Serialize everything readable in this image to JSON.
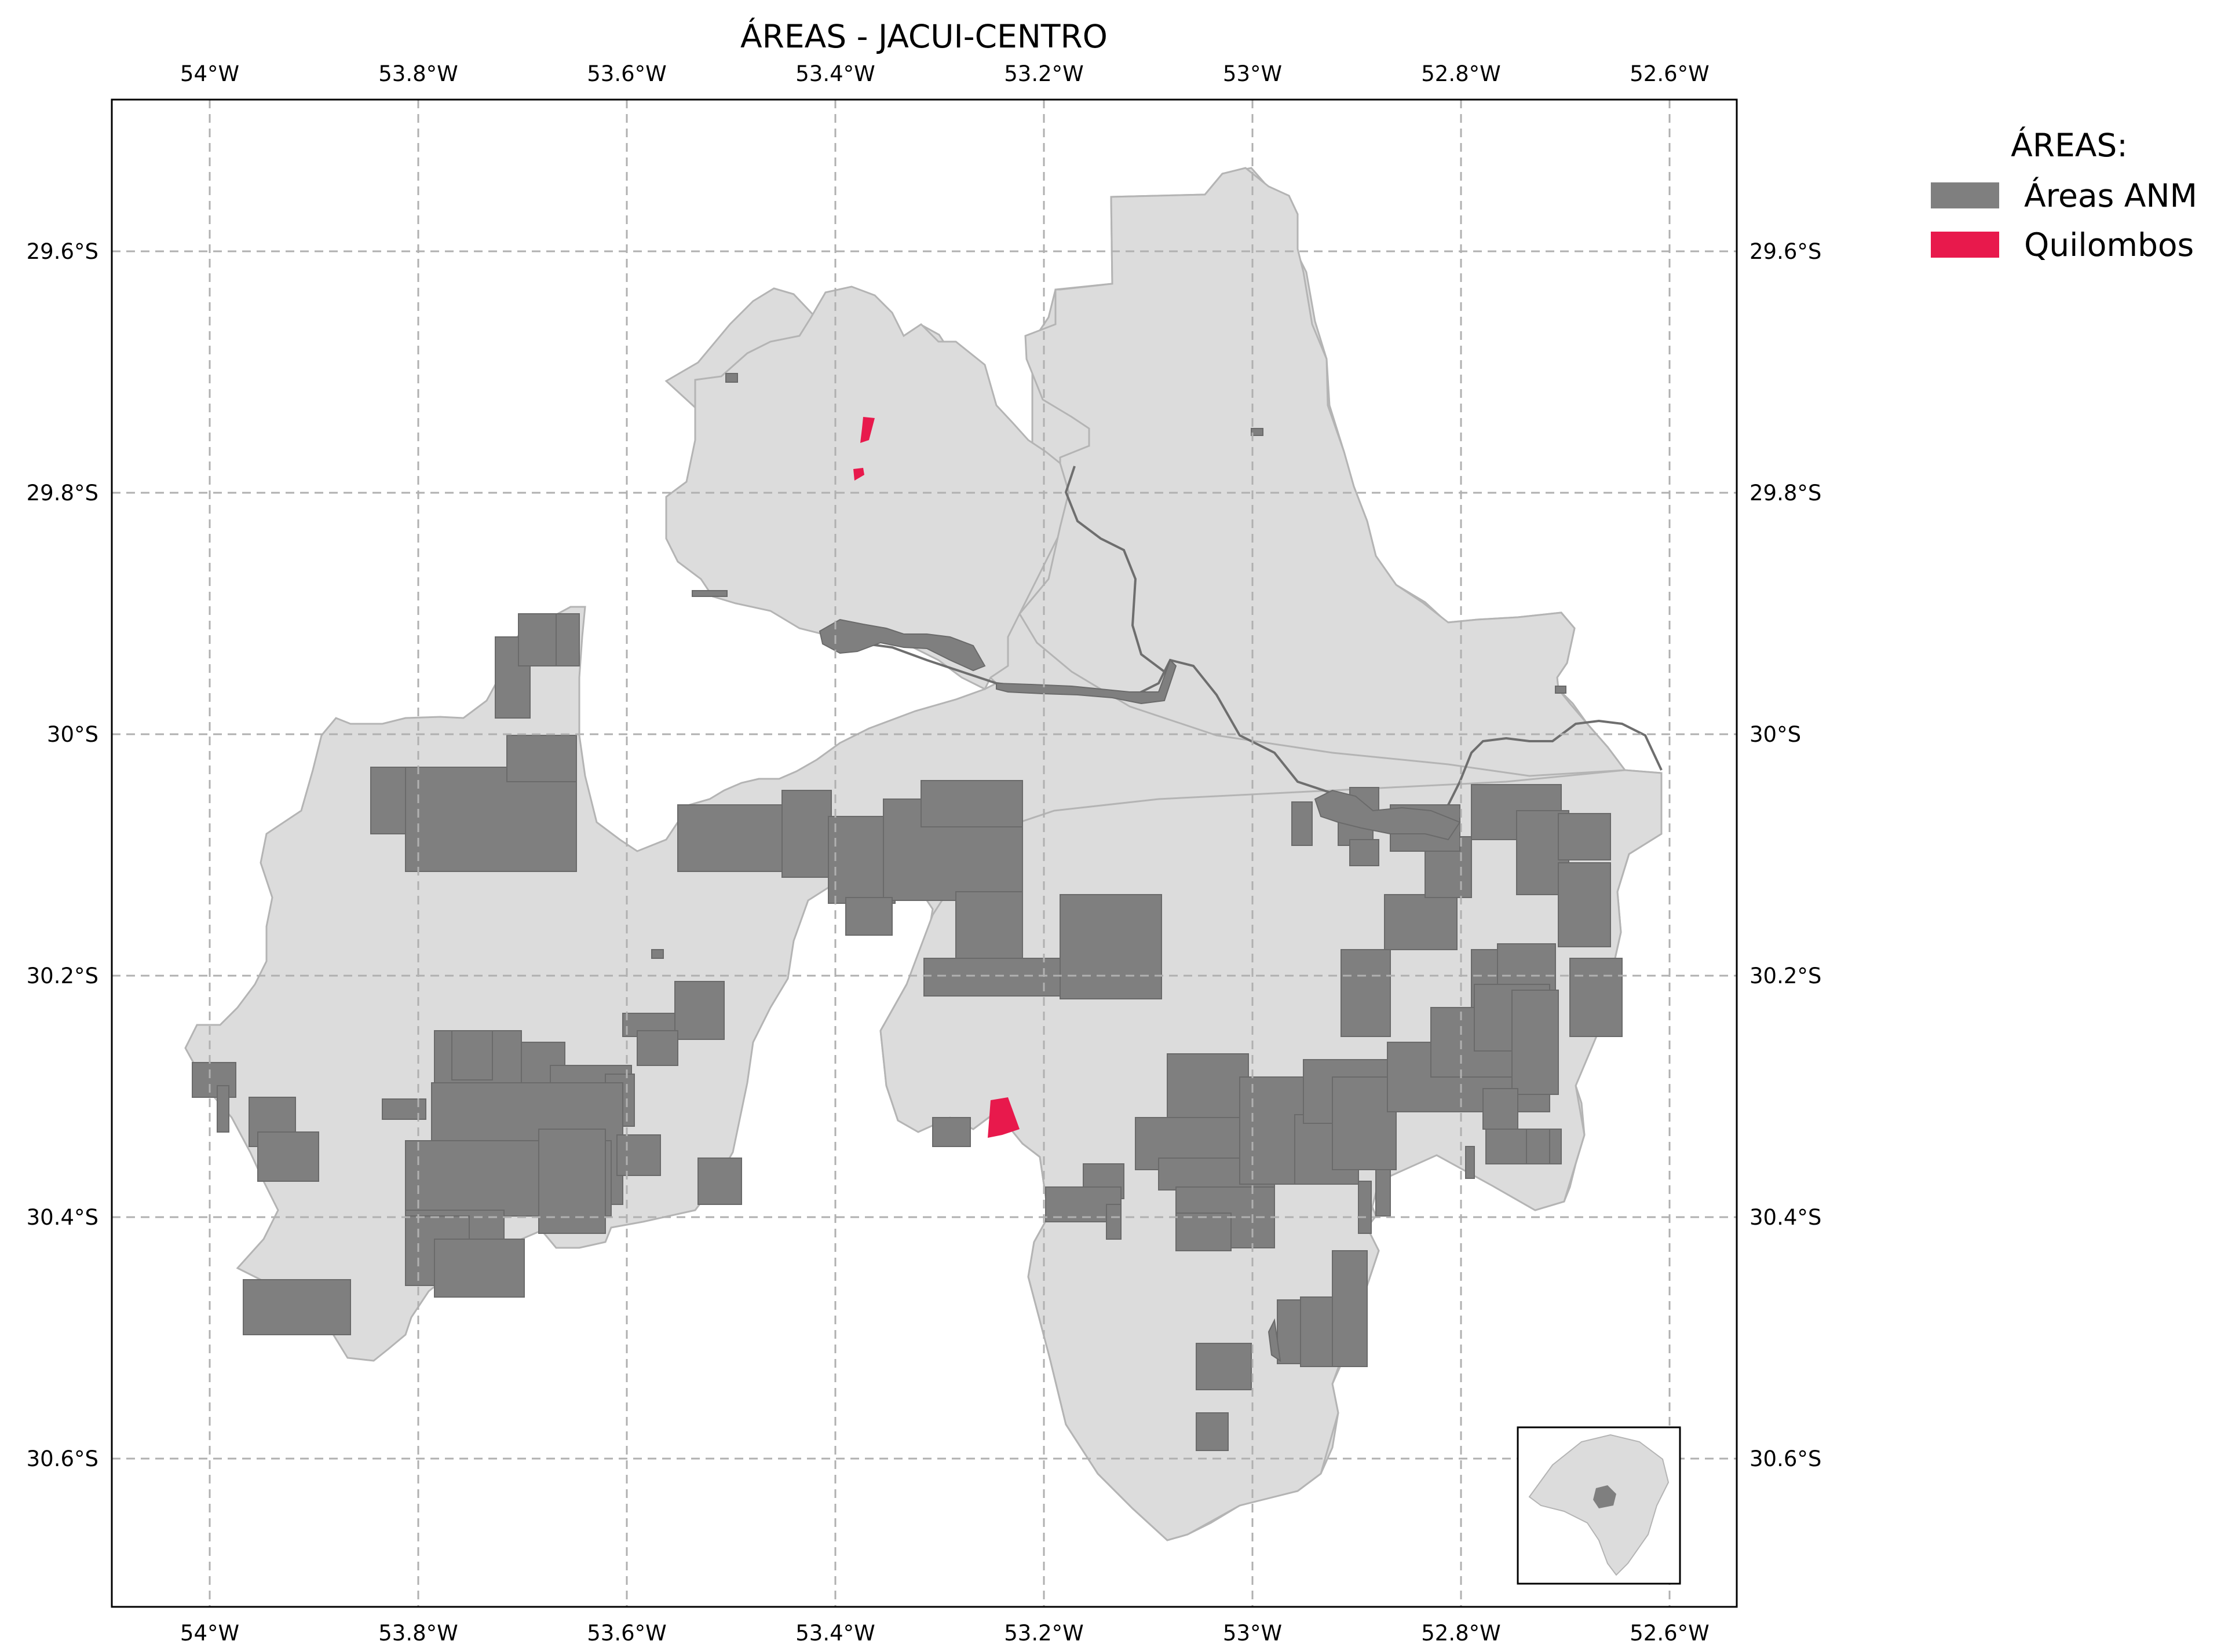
{
  "title": "ÁREAS - JACUI-CENTRO",
  "colors": {
    "region_fill": "#dcdcdc",
    "region_edge": "#b4b4b4",
    "anm": "#7f7f7f",
    "quilombos": "#e8194c",
    "river": "#6e6e6e",
    "grid": "#b0b0b0"
  },
  "legend": {
    "title": "ÁREAS:",
    "items": [
      {
        "label": "Áreas ANM",
        "color": "#7f7f7f"
      },
      {
        "label": "Quilombos",
        "color": "#e8194c"
      }
    ]
  },
  "axes": {
    "lon_ticks": [
      {
        "value": -54.0,
        "label": "54°W"
      },
      {
        "value": -53.8,
        "label": "53.8°W"
      },
      {
        "value": -53.6,
        "label": "53.6°W"
      },
      {
        "value": -53.4,
        "label": "53.4°W"
      },
      {
        "value": -53.2,
        "label": "53.2°W"
      },
      {
        "value": -53.0,
        "label": "53°W"
      },
      {
        "value": -52.8,
        "label": "52.8°W"
      },
      {
        "value": -52.6,
        "label": "52.6°W"
      }
    ],
    "lat_ticks": [
      {
        "value": -29.6,
        "label": "29.6°S"
      },
      {
        "value": -29.8,
        "label": "29.8°S"
      },
      {
        "value": -30.0,
        "label": "30°S"
      },
      {
        "value": -30.2,
        "label": "30.2°S"
      },
      {
        "value": -30.4,
        "label": "30.4°S"
      },
      {
        "value": -30.6,
        "label": "30.6°S"
      }
    ],
    "lon_range": [
      -54.09,
      -52.53
    ],
    "lat_range": [
      -30.725,
      -29.475
    ]
  },
  "map_data": {
    "projection": "PlateCarree",
    "gridlines": "dashed",
    "inset": "Rio Grande do Sul locator, bottom-right",
    "quilombos": [
      {
        "lon": -53.373,
        "lat": -29.765
      },
      {
        "lon": -53.377,
        "lat": -29.79
      },
      {
        "lon": -53.238,
        "lat": -30.325
      }
    ]
  }
}
